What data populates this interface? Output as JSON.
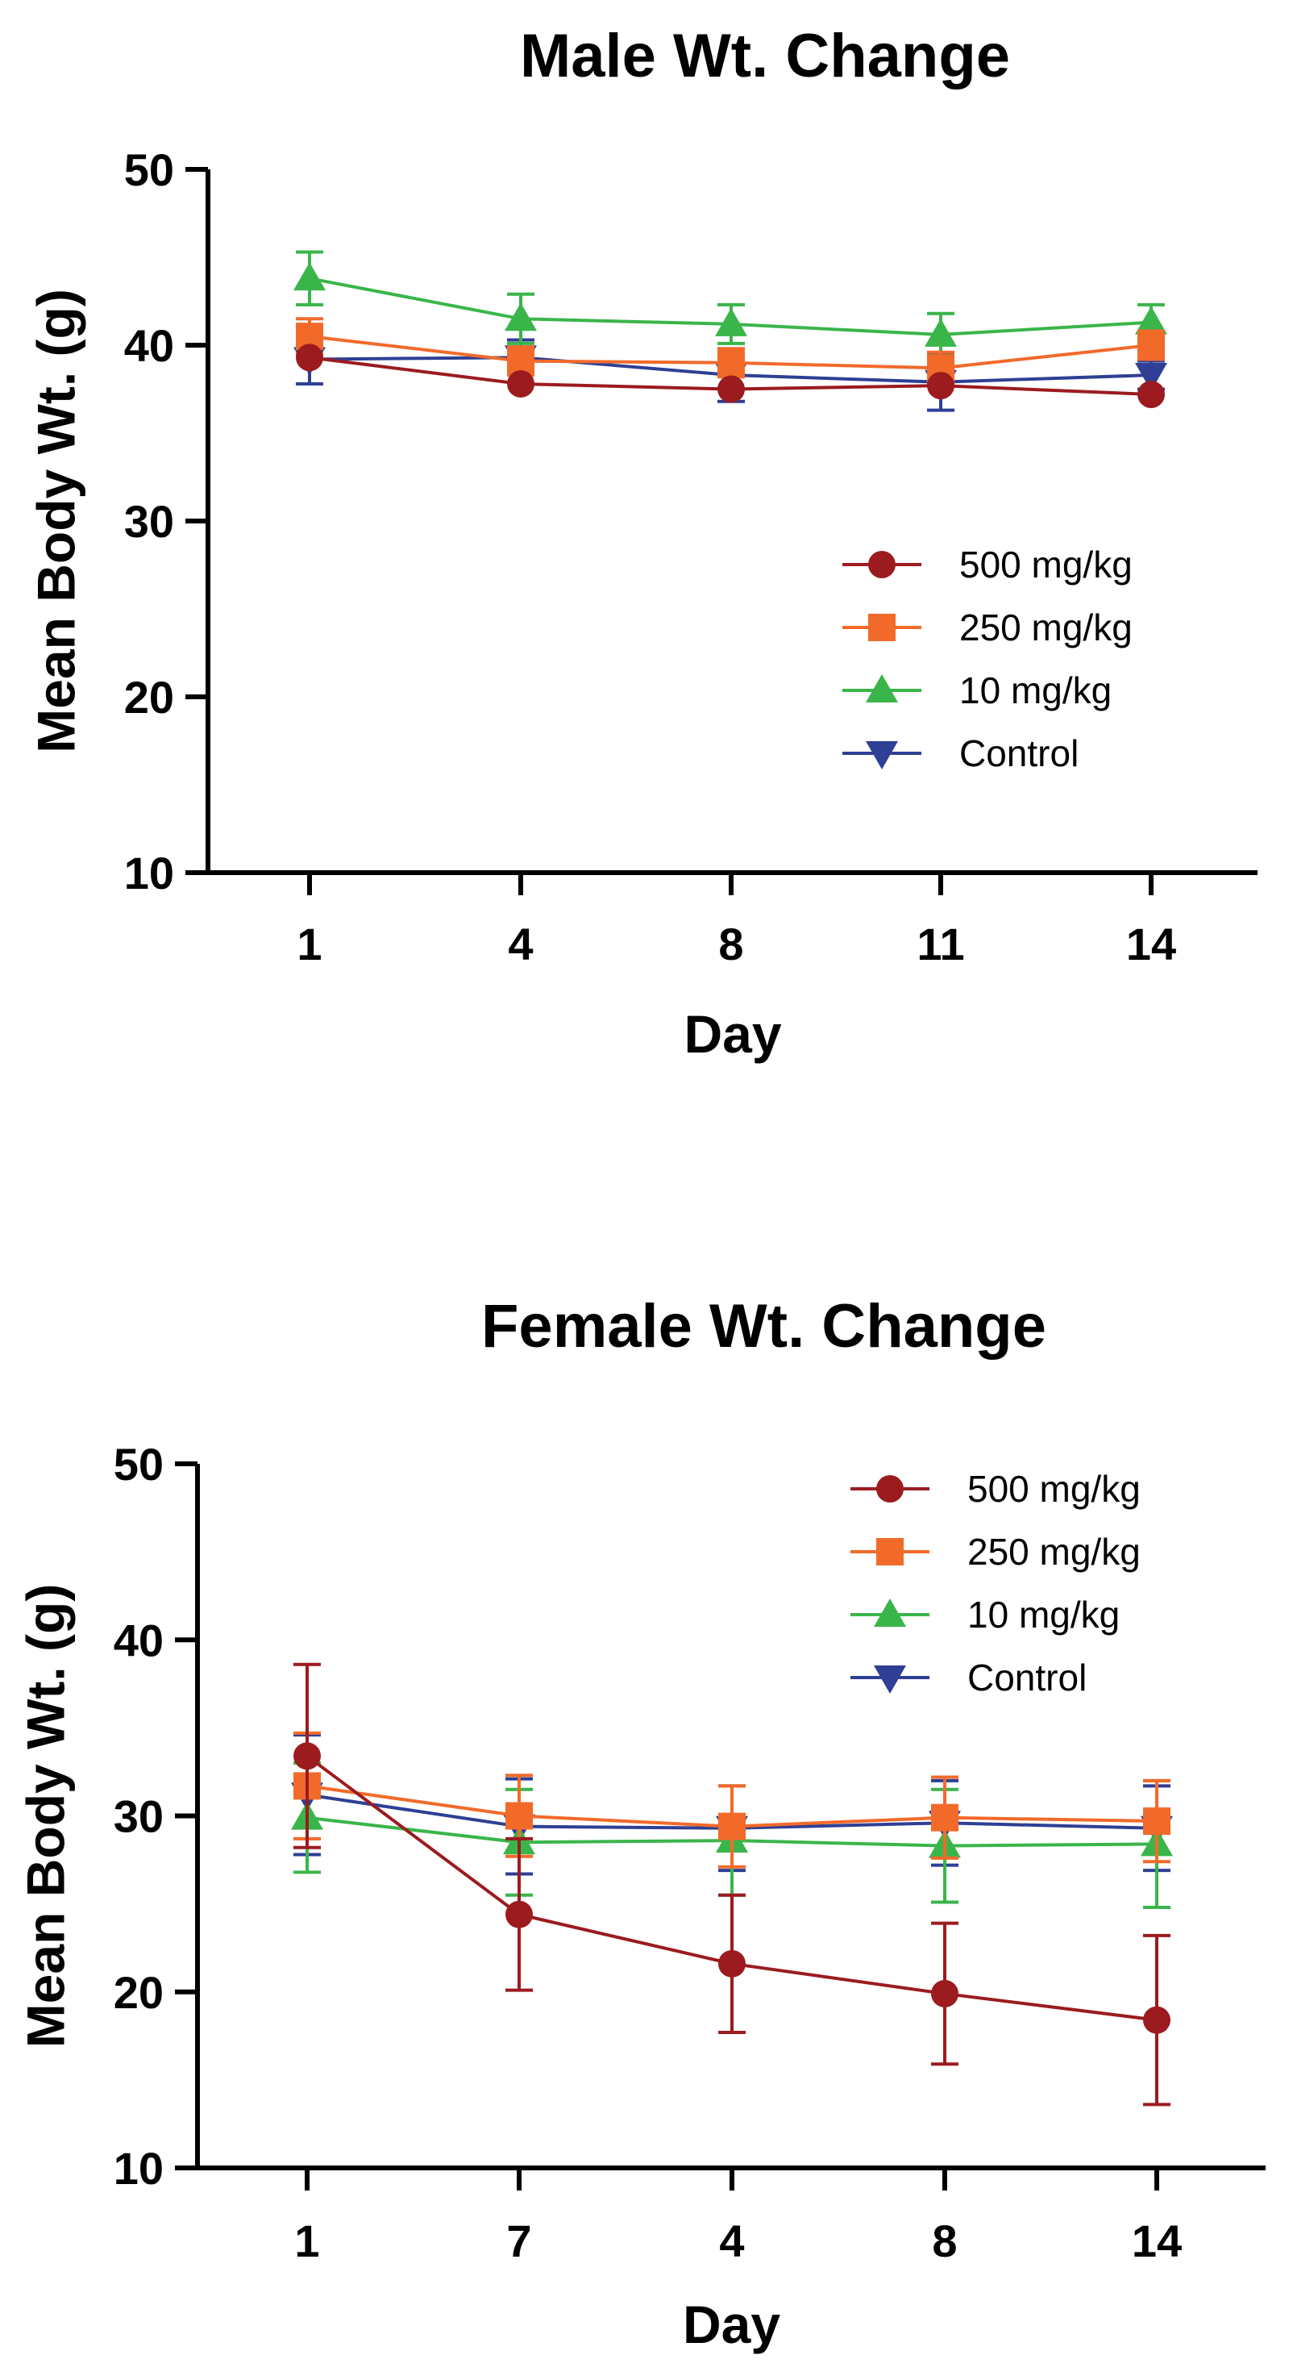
{
  "colors": {
    "500 mg/kg": "#9b1b1f",
    "250 mg/kg": "#f26a2a",
    "10 mg/kg": "#3ab54a",
    "Control": "#2e3f95"
  },
  "chart_data": [
    {
      "type": "line",
      "title": "Male Wt. Change",
      "xlabel": "Day",
      "ylabel": "Mean Body Wt. (g)",
      "categories": [
        "1",
        "4",
        "8",
        "11",
        "14"
      ],
      "ylim": [
        10,
        50
      ],
      "yticks": [
        "10",
        "20",
        "30",
        "40",
        "50"
      ],
      "grid": false,
      "legend_position": "middle-right",
      "series": [
        {
          "name": "500 mg/kg",
          "marker": "circle",
          "values": [
            39.3,
            37.8,
            37.5,
            37.7,
            37.2
          ],
          "errors": [
            0,
            0,
            0,
            0,
            0
          ]
        },
        {
          "name": "250 mg/kg",
          "marker": "square",
          "values": [
            40.5,
            39.1,
            39.0,
            38.7,
            40.0
          ],
          "errors": [
            1.0,
            0.8,
            0.8,
            0.9,
            0.8
          ]
        },
        {
          "name": "10 mg/kg",
          "marker": "triangle-up",
          "values": [
            43.8,
            41.5,
            41.2,
            40.6,
            41.3
          ],
          "errors": [
            1.5,
            1.4,
            1.1,
            1.2,
            1.0
          ]
        },
        {
          "name": "Control",
          "marker": "triangle-down",
          "values": [
            39.2,
            39.3,
            38.3,
            37.9,
            38.3
          ],
          "errors": [
            1.4,
            1.0,
            1.5,
            1.6,
            0.8
          ]
        }
      ]
    },
    {
      "type": "line",
      "title": "Female Wt. Change",
      "xlabel": "Day",
      "ylabel": "Mean Body Wt. (g)",
      "categories": [
        "1",
        "7",
        "4",
        "8",
        "14"
      ],
      "ylim": [
        10,
        50
      ],
      "yticks": [
        "10",
        "20",
        "30",
        "40",
        "50"
      ],
      "grid": false,
      "legend_position": "top-right",
      "series": [
        {
          "name": "500 mg/kg",
          "marker": "circle",
          "values": [
            33.4,
            24.4,
            21.6,
            19.9,
            18.4
          ],
          "errors": [
            5.2,
            4.3,
            3.9,
            4.0,
            4.8
          ]
        },
        {
          "name": "250 mg/kg",
          "marker": "square",
          "values": [
            31.7,
            30.0,
            29.4,
            29.9,
            29.7
          ],
          "errors": [
            3.0,
            2.3,
            2.3,
            2.3,
            2.3
          ]
        },
        {
          "name": "10 mg/kg",
          "marker": "triangle-up",
          "values": [
            29.9,
            28.5,
            28.6,
            28.3,
            28.4
          ],
          "errors": [
            3.1,
            3.0,
            3.1,
            3.2,
            3.6
          ]
        },
        {
          "name": "Control",
          "marker": "triangle-down",
          "values": [
            31.2,
            29.4,
            29.3,
            29.6,
            29.3
          ],
          "errors": [
            3.4,
            2.7,
            2.4,
            2.4,
            2.4
          ]
        }
      ]
    }
  ]
}
